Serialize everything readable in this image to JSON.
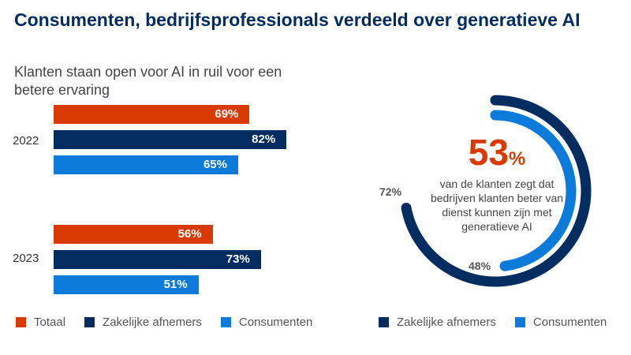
{
  "title": "Consumenten, bedrijfsprofessionals verdeeld over generatieve AI",
  "colors": {
    "totaal": "#d83a00",
    "zakelijk": "#032d60",
    "consumenten": "#0b7ad8"
  },
  "chart_data": [
    {
      "type": "bar",
      "orientation": "horizontal",
      "title": "Klanten staan open voor AI in ruil voor een betere ervaring",
      "categories": [
        "2022",
        "2023"
      ],
      "series": [
        {
          "name": "Totaal",
          "values": [
            69,
            56
          ],
          "labels": [
            "69%",
            "56%"
          ]
        },
        {
          "name": "Zakelijke afnemers",
          "values": [
            82,
            73
          ],
          "labels": [
            "82%",
            "73%"
          ]
        },
        {
          "name": "Consumenten",
          "values": [
            65,
            51
          ],
          "labels": [
            "65%",
            "51%"
          ]
        }
      ],
      "legend": [
        "Totaal",
        "Zakelijke afnemers",
        "Consumenten"
      ],
      "legend_position": "bottom"
    },
    {
      "type": "radial-bar",
      "headline_value": "53",
      "headline_unit": "%",
      "headline_text": "van de klanten zegt dat bedrijven klanten beter van dienst kunnen zijn met generatieve AI",
      "series": [
        {
          "name": "Zakelijke afnemers",
          "value": 72,
          "label": "72%"
        },
        {
          "name": "Consumenten",
          "value": 48,
          "label": "48%"
        }
      ],
      "legend": [
        "Zakelijke afnemers",
        "Consumenten"
      ],
      "legend_position": "bottom"
    }
  ]
}
